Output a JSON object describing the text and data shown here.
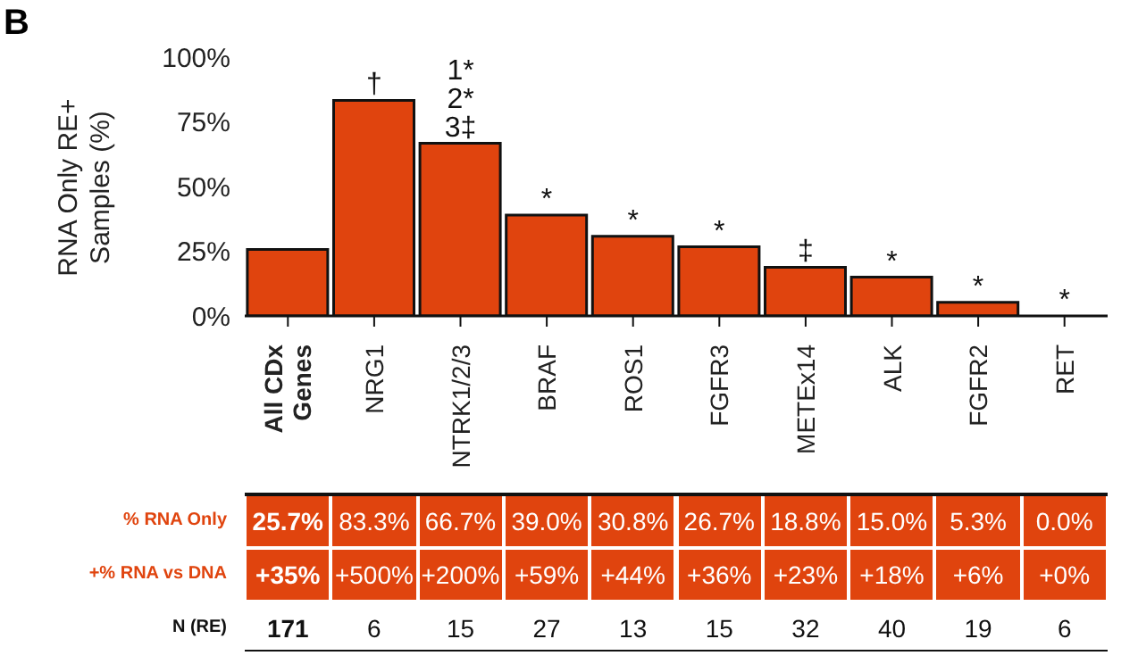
{
  "chart_data": {
    "type": "bar",
    "title": "B",
    "ylabel": "RNA Only RE+ Samples (%)",
    "categories": [
      "All CDx Genes",
      "NRG1",
      "NTRK1/2/3",
      "BRAF",
      "ROS1",
      "FGFR3",
      "METEx14",
      "ALK",
      "FGFR2",
      "RET"
    ],
    "values": [
      25.7,
      83.3,
      66.7,
      39.0,
      30.8,
      26.7,
      18.8,
      15.0,
      5.3,
      0.0
    ],
    "value_labels": [
      "25.7%",
      "83.3%",
      "66.7%",
      "39.0%",
      "30.8%",
      "26.7%",
      "18.8%",
      "15.0%",
      "5.3%",
      "0.0%"
    ],
    "color": "#e0440e",
    "ylim": [
      0,
      100
    ],
    "yticks": [
      {
        "value": 0,
        "label": "0%"
      },
      {
        "value": 25,
        "label": "25%"
      },
      {
        "value": 50,
        "label": "50%"
      },
      {
        "value": 75,
        "label": "75%"
      },
      {
        "value": 100,
        "label": "100%"
      }
    ],
    "grid": false,
    "legend": false,
    "annotations": [
      {
        "text": "†",
        "x": "NRG1",
        "y": 83.3
      },
      {
        "text": "1*",
        "x": "NTRK1/2/3",
        "y": 66.7
      },
      {
        "text": "2*",
        "x": "NTRK1/2/3",
        "y": 66.7
      },
      {
        "text": "3‡",
        "x": "NTRK1/2/3",
        "y": 66.7
      },
      {
        "text": "*",
        "x": "BRAF",
        "y": 39.0
      },
      {
        "text": "*",
        "x": "ROS1",
        "y": 30.8
      },
      {
        "text": "*",
        "x": "FGFR3",
        "y": 26.7
      },
      {
        "text": "‡",
        "x": "METEx14",
        "y": 18.8
      },
      {
        "text": "*",
        "x": "ALK",
        "y": 15.0
      },
      {
        "text": "*",
        "x": "FGFR2",
        "y": 5.3
      },
      {
        "text": "*",
        "x": "RET",
        "y": 0.0
      },
      "% RNA Only",
      "+% RNA vs DNA",
      "+35%",
      "+500%",
      "+200%",
      "+59%",
      "+44%",
      "+36%",
      "+23%",
      "+18%",
      "+6%",
      "+0%",
      "N (RE)",
      "171",
      "6",
      "15",
      "27",
      "13",
      "15",
      "32",
      "40",
      "19",
      "6"
    ]
  }
}
